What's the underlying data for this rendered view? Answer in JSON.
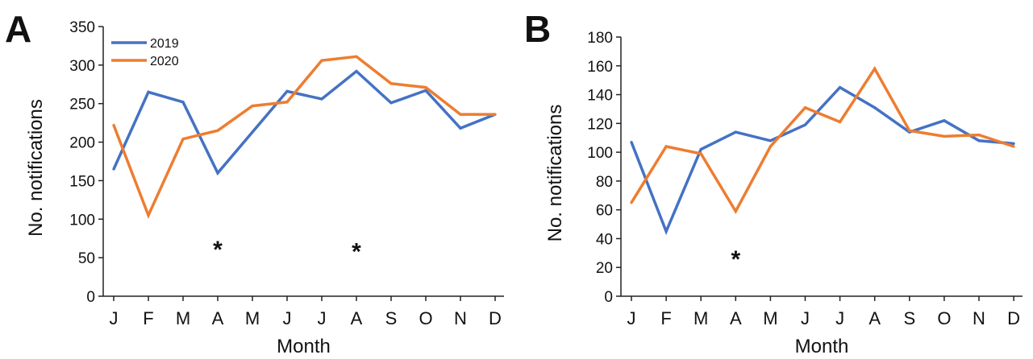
{
  "chart_data": [
    {
      "panel": "A",
      "type": "line",
      "categories": [
        "J",
        "F",
        "M",
        "A",
        "M",
        "J",
        "J",
        "A",
        "S",
        "O",
        "N",
        "D"
      ],
      "series": [
        {
          "name": "2019",
          "color": "#4472C4",
          "values": [
            165,
            265,
            252,
            160,
            213,
            266,
            256,
            292,
            251,
            267,
            218,
            236
          ]
        },
        {
          "name": "2020",
          "color": "#ED7D31",
          "values": [
            222,
            105,
            204,
            215,
            247,
            252,
            306,
            311,
            276,
            271,
            236,
            236
          ]
        }
      ],
      "ylabel": "No. notifications",
      "xlabel": "Month",
      "ylim": [
        0,
        350
      ],
      "yticks": [
        0,
        50,
        100,
        150,
        200,
        250,
        300,
        350
      ],
      "legend": "top-left",
      "grid": false,
      "annotations": [
        {
          "text": "*",
          "category_index": 3,
          "y": 65
        },
        {
          "text": "*",
          "category_index": 7,
          "y": 62
        }
      ]
    },
    {
      "panel": "B",
      "type": "line",
      "categories": [
        "J",
        "F",
        "M",
        "A",
        "M",
        "J",
        "J",
        "A",
        "S",
        "O",
        "N",
        "D"
      ],
      "series": [
        {
          "name": "2019",
          "color": "#4472C4",
          "values": [
            107,
            45,
            102,
            114,
            108,
            119,
            145,
            131,
            114,
            122,
            108,
            106
          ]
        },
        {
          "name": "2020",
          "color": "#ED7D31",
          "values": [
            65,
            104,
            99,
            59,
            104,
            131,
            121,
            158,
            115,
            111,
            112,
            104
          ]
        }
      ],
      "ylabel": "No. notifications",
      "xlabel": "Month",
      "ylim": [
        0,
        180
      ],
      "yticks": [
        0,
        20,
        40,
        60,
        80,
        100,
        120,
        140,
        160,
        180
      ],
      "grid": false,
      "annotations": [
        {
          "text": "*",
          "category_index": 3,
          "y": 28
        }
      ]
    }
  ]
}
